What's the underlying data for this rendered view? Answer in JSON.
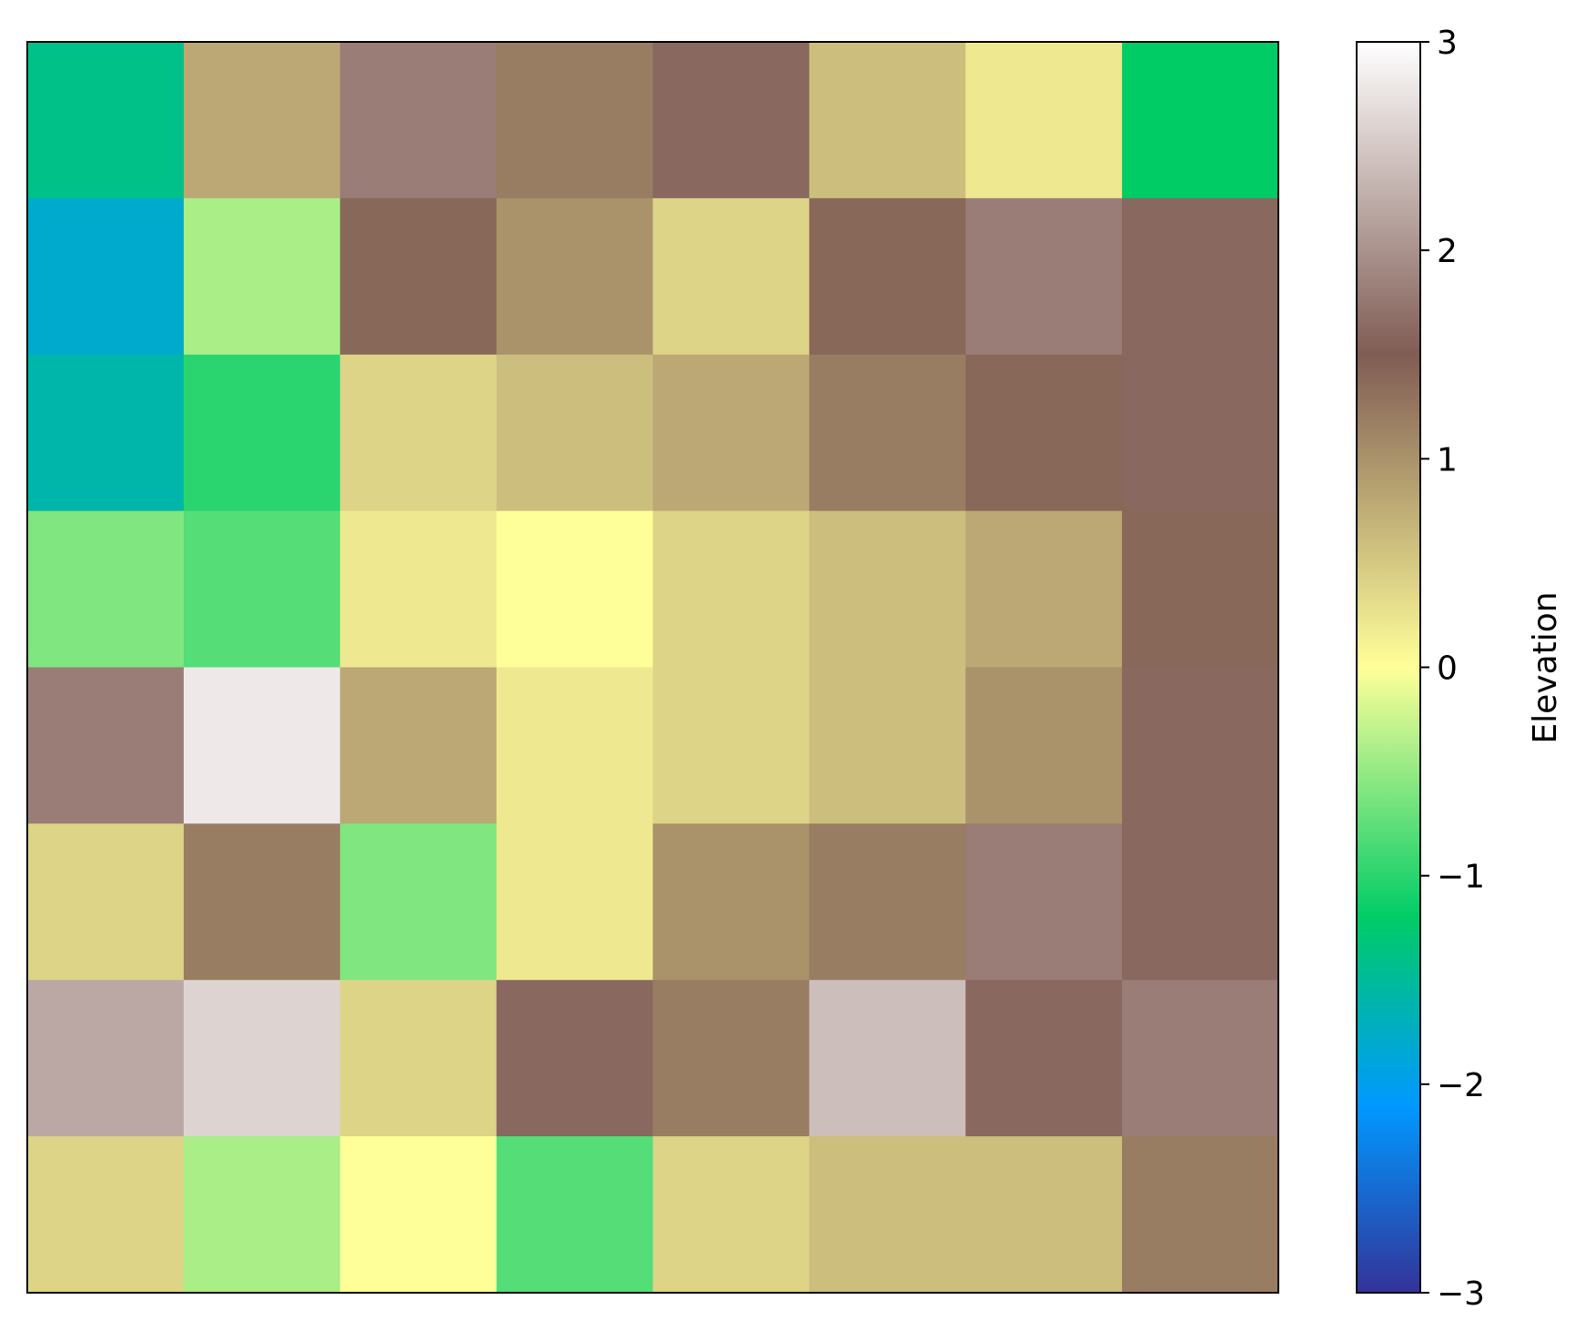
{
  "chart_data": {
    "type": "heatmap",
    "title": "",
    "xlabel": "",
    "ylabel": "",
    "x_ticks": [],
    "y_ticks": [],
    "colormap": "terrain",
    "colorbar": {
      "label": "Elevation",
      "range": [
        -3,
        3
      ],
      "ticks": [
        -3,
        -2,
        -1,
        0,
        1,
        2,
        3
      ],
      "tick_labels": [
        "−3",
        "−2",
        "−1",
        "0",
        "1",
        "2",
        "3"
      ]
    },
    "colormap_stops": [
      {
        "value": -3.0,
        "color": "#333399"
      },
      {
        "value": -2.1,
        "color": "#0099ff"
      },
      {
        "value": -1.2,
        "color": "#00cc66"
      },
      {
        "value": 0.0,
        "color": "#ffff99"
      },
      {
        "value": 1.5,
        "color": "#805c54"
      },
      {
        "value": 3.0,
        "color": "#ffffff"
      }
    ],
    "elevation_grid": {
      "rows": 8,
      "cols": 8,
      "values": [
        [
          -1.4,
          0.8,
          1.8,
          1.2,
          1.6,
          0.6,
          0.2,
          -1.2
        ],
        [
          -1.8,
          -0.4,
          1.4,
          1.0,
          0.4,
          1.4,
          1.8,
          1.6
        ],
        [
          -1.6,
          -1.0,
          0.4,
          0.6,
          0.8,
          1.2,
          1.4,
          1.6
        ],
        [
          -0.6,
          -0.8,
          0.2,
          0.0,
          0.4,
          0.6,
          0.8,
          1.4
        ],
        [
          1.8,
          2.8,
          0.8,
          0.2,
          0.4,
          0.6,
          1.0,
          1.6
        ],
        [
          0.4,
          1.2,
          -0.6,
          0.2,
          1.0,
          1.2,
          1.8,
          1.6
        ],
        [
          2.2,
          2.6,
          0.4,
          1.6,
          1.2,
          2.4,
          1.6,
          1.8
        ],
        [
          0.4,
          -0.4,
          0.0,
          -0.8,
          0.4,
          0.6,
          0.6,
          1.2
        ]
      ]
    }
  }
}
